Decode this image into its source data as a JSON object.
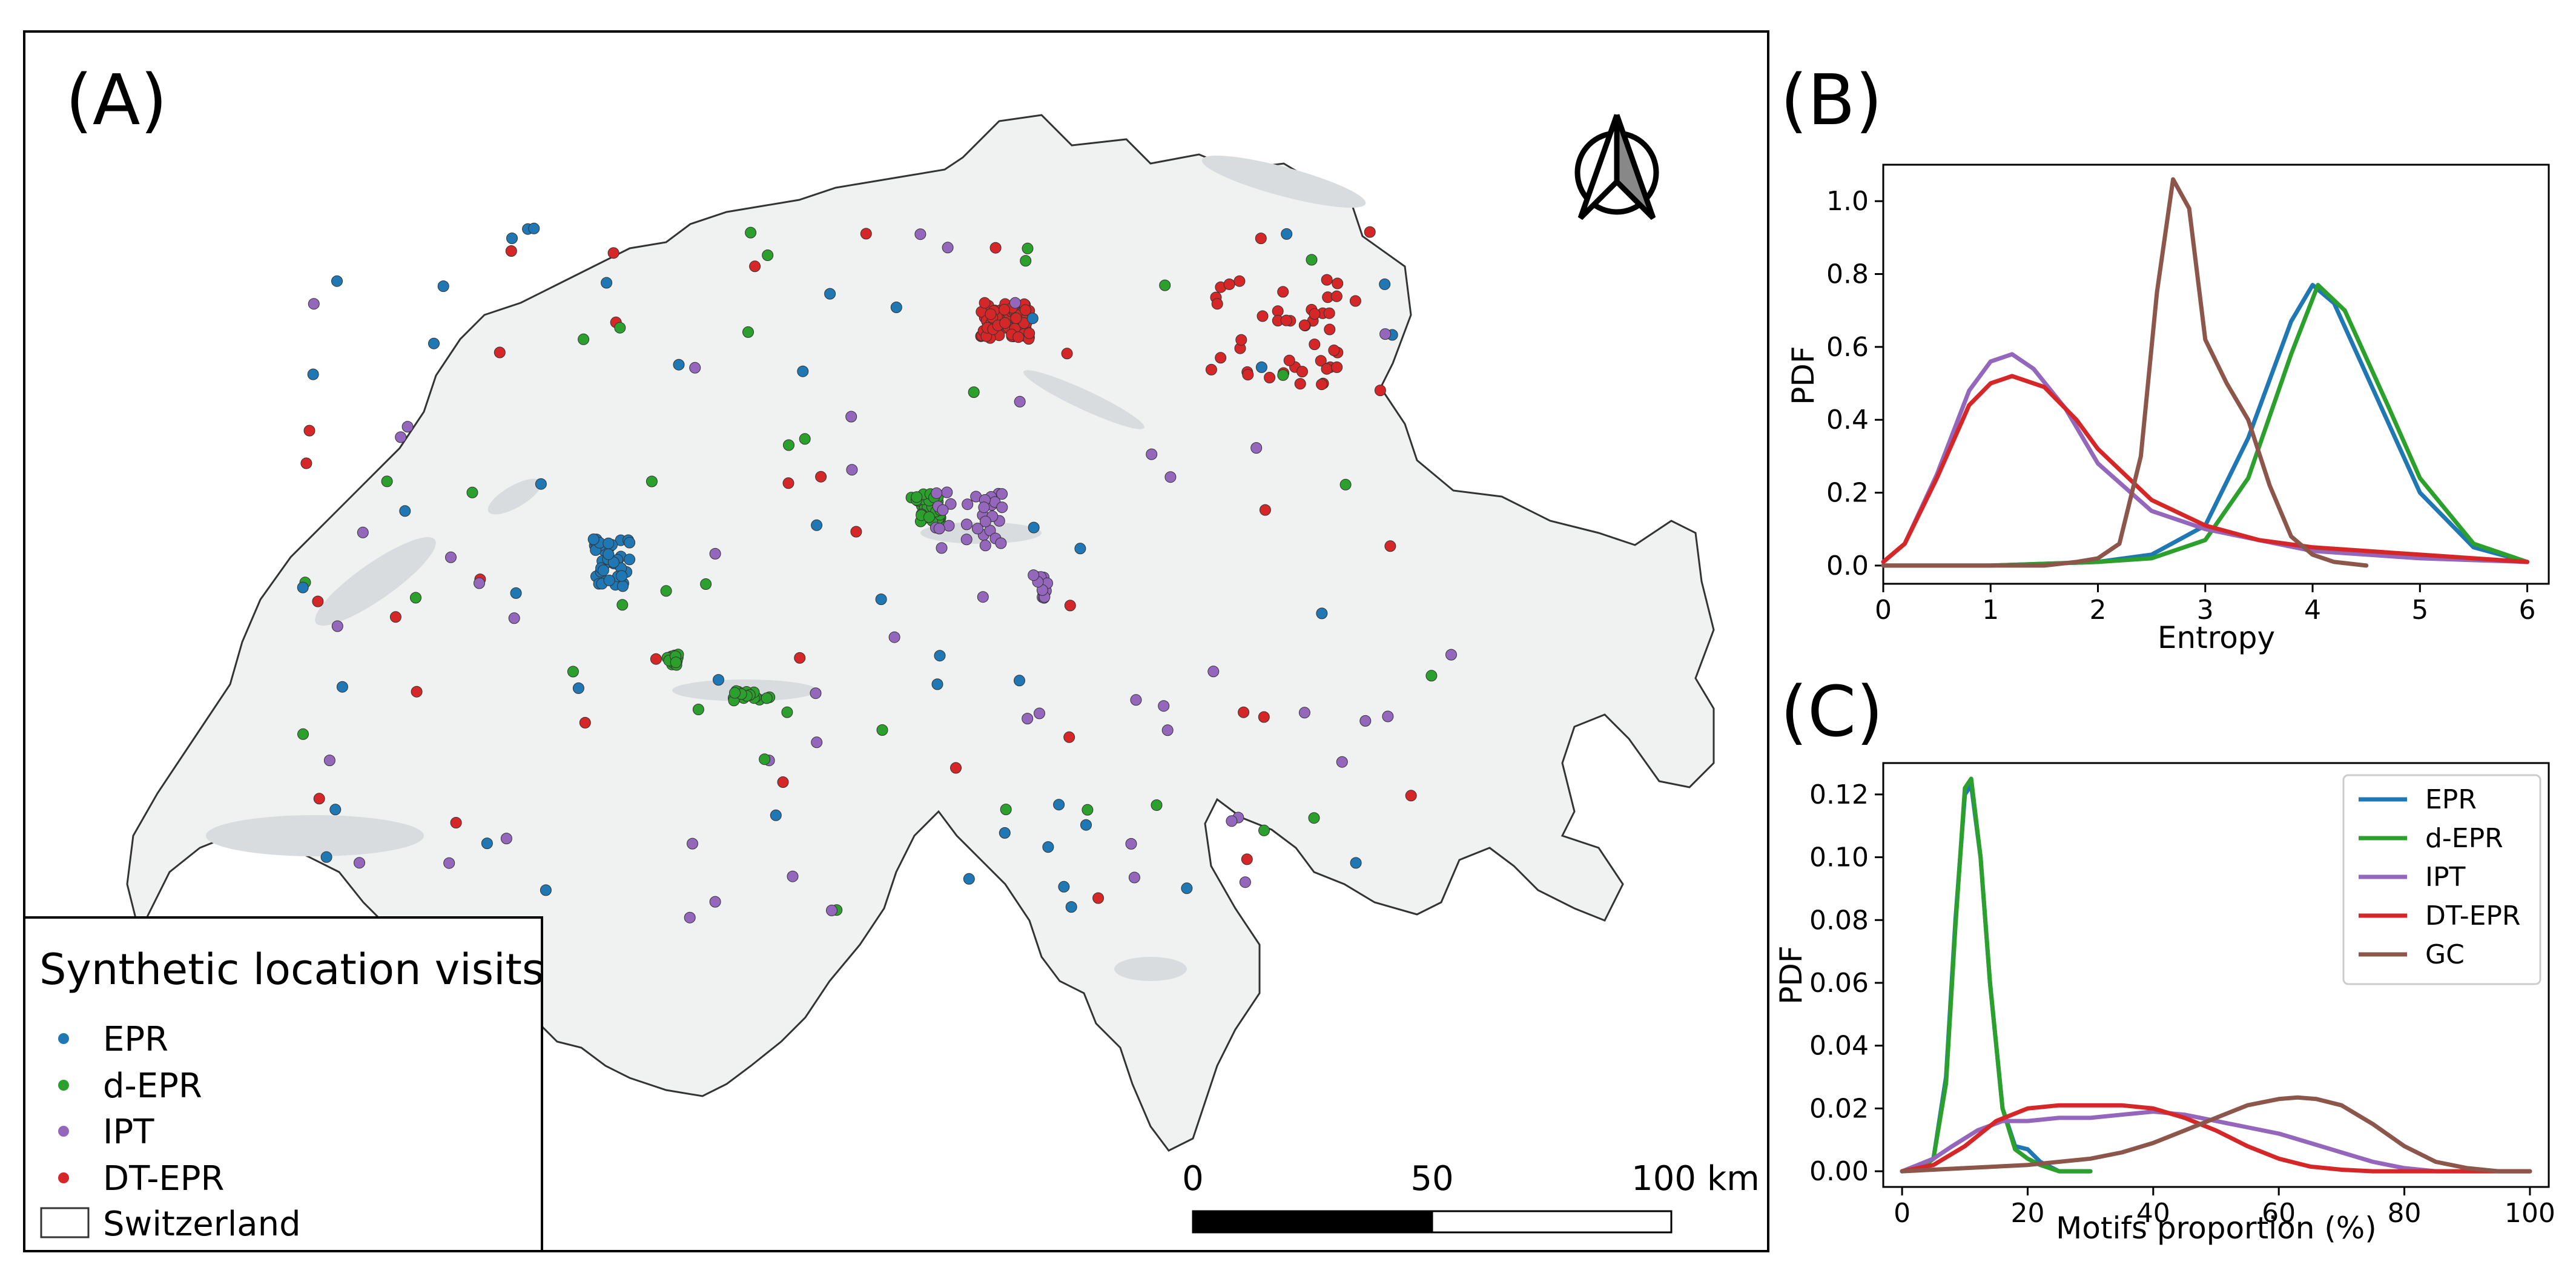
{
  "panels": {
    "a": "(A)",
    "b": "(B)",
    "c": "(C)"
  },
  "map": {
    "legend_title": "Synthetic location visits",
    "legend_items": [
      {
        "label": "EPR",
        "color": "#1f77b4"
      },
      {
        "label": "d-EPR",
        "color": "#2ca02c"
      },
      {
        "label": "IPT",
        "color": "#9467bd"
      },
      {
        "label": "DT-EPR",
        "color": "#d62728"
      }
    ],
    "boundary_label": "Switzerland",
    "scale_labels": [
      "0",
      "50",
      "100 km"
    ],
    "north_arrow_icon": "north-arrow-icon"
  },
  "chart_data": [
    {
      "type": "line",
      "panel": "(B)",
      "xlabel": "Entropy",
      "ylabel": "PDF",
      "xlim": [
        0,
        6.2
      ],
      "ylim": [
        -0.05,
        1.1
      ],
      "xticks": [
        0,
        1,
        2,
        3,
        4,
        5,
        6
      ],
      "yticks": [
        0.0,
        0.2,
        0.4,
        0.6,
        0.8,
        1.0
      ],
      "ytick_labels": [
        "0.0",
        "0.2",
        "0.4",
        "0.6",
        "0.8",
        "1.0"
      ],
      "grid": false,
      "series": [
        {
          "name": "EPR",
          "color": "#1f77b4",
          "x": [
            0,
            1,
            2,
            2.5,
            3,
            3.4,
            3.8,
            4.0,
            4.2,
            4.6,
            5.0,
            5.5,
            6.0
          ],
          "y": [
            0,
            0,
            0.01,
            0.03,
            0.11,
            0.35,
            0.67,
            0.77,
            0.72,
            0.46,
            0.2,
            0.05,
            0.01
          ]
        },
        {
          "name": "d-EPR",
          "color": "#2ca02c",
          "x": [
            0,
            1,
            2,
            2.5,
            3,
            3.4,
            3.8,
            4.05,
            4.3,
            4.7,
            5.0,
            5.5,
            6.0
          ],
          "y": [
            0,
            0,
            0.01,
            0.02,
            0.07,
            0.24,
            0.58,
            0.77,
            0.7,
            0.44,
            0.24,
            0.06,
            0.01
          ]
        },
        {
          "name": "IPT",
          "color": "#9467bd",
          "x": [
            0,
            0.2,
            0.5,
            0.8,
            1.0,
            1.2,
            1.4,
            1.7,
            2.0,
            2.5,
            3.0,
            3.5,
            4.0,
            5.0,
            6.0
          ],
          "y": [
            0.01,
            0.06,
            0.25,
            0.48,
            0.56,
            0.58,
            0.54,
            0.43,
            0.28,
            0.15,
            0.1,
            0.07,
            0.04,
            0.02,
            0.01
          ]
        },
        {
          "name": "DT-EPR",
          "color": "#d62728",
          "x": [
            0,
            0.2,
            0.5,
            0.8,
            1.0,
            1.2,
            1.5,
            1.8,
            2.0,
            2.5,
            3.0,
            3.5,
            4.0,
            5.0,
            6.0
          ],
          "y": [
            0.01,
            0.06,
            0.24,
            0.44,
            0.5,
            0.52,
            0.49,
            0.4,
            0.32,
            0.18,
            0.11,
            0.07,
            0.05,
            0.03,
            0.01
          ]
        },
        {
          "name": "GC",
          "color": "#8c564b",
          "x": [
            0,
            1.5,
            1.8,
            2.0,
            2.2,
            2.4,
            2.55,
            2.7,
            2.85,
            3.0,
            3.2,
            3.4,
            3.6,
            3.8,
            4.0,
            4.2,
            4.5
          ],
          "y": [
            0,
            0,
            0.01,
            0.02,
            0.06,
            0.3,
            0.75,
            1.06,
            0.98,
            0.62,
            0.5,
            0.4,
            0.22,
            0.08,
            0.03,
            0.01,
            0.0
          ]
        }
      ]
    },
    {
      "type": "line",
      "panel": "(C)",
      "xlabel": "Motifs proportion (%)",
      "ylabel": "PDF",
      "xlim": [
        -3,
        103
      ],
      "ylim": [
        -0.005,
        0.13
      ],
      "xticks": [
        0,
        20,
        40,
        60,
        80,
        100
      ],
      "yticks": [
        0.0,
        0.02,
        0.04,
        0.06,
        0.08,
        0.1,
        0.12
      ],
      "ytick_labels": [
        "0.00",
        "0.02",
        "0.04",
        "0.06",
        "0.08",
        "0.10",
        "0.12"
      ],
      "grid": false,
      "legend_position": "top-right",
      "series": [
        {
          "name": "EPR",
          "color": "#1f77b4",
          "x": [
            0,
            3,
            5,
            7,
            8.5,
            10,
            11,
            12.5,
            14,
            16,
            18,
            20,
            22,
            25,
            30
          ],
          "y": [
            0,
            0.001,
            0.004,
            0.03,
            0.08,
            0.12,
            0.123,
            0.1,
            0.06,
            0.02,
            0.008,
            0.007,
            0.003,
            0.0,
            0.0
          ]
        },
        {
          "name": "d-EPR",
          "color": "#2ca02c",
          "x": [
            0,
            3,
            5,
            7,
            8.5,
            10,
            11,
            12.5,
            14,
            16,
            18,
            20,
            22,
            25,
            30
          ],
          "y": [
            0,
            0.001,
            0.004,
            0.028,
            0.078,
            0.122,
            0.125,
            0.1,
            0.06,
            0.02,
            0.007,
            0.004,
            0.002,
            0.0,
            0.0
          ]
        },
        {
          "name": "IPT",
          "color": "#9467bd",
          "x": [
            0,
            5,
            8,
            12,
            16,
            20,
            25,
            30,
            35,
            40,
            45,
            50,
            55,
            60,
            65,
            70,
            75,
            80,
            85,
            90,
            95,
            100
          ],
          "y": [
            0,
            0.004,
            0.008,
            0.013,
            0.016,
            0.016,
            0.017,
            0.017,
            0.018,
            0.019,
            0.018,
            0.016,
            0.014,
            0.012,
            0.009,
            0.006,
            0.003,
            0.001,
            0.0,
            0.0,
            0.0,
            0.0
          ]
        },
        {
          "name": "DT-EPR",
          "color": "#d62728",
          "x": [
            0,
            5,
            10,
            15,
            20,
            25,
            30,
            35,
            40,
            45,
            50,
            55,
            60,
            65,
            70,
            75,
            80,
            85,
            90,
            95,
            100
          ],
          "y": [
            0,
            0.002,
            0.008,
            0.016,
            0.02,
            0.021,
            0.021,
            0.021,
            0.02,
            0.017,
            0.013,
            0.008,
            0.004,
            0.0015,
            0.0005,
            0.0,
            0.0,
            0.0,
            0.0,
            0.0,
            0.0
          ]
        },
        {
          "name": "GC",
          "color": "#8c564b",
          "x": [
            0,
            10,
            20,
            30,
            35,
            40,
            45,
            50,
            55,
            60,
            63,
            66,
            70,
            75,
            80,
            85,
            90,
            95,
            100
          ],
          "y": [
            0,
            0.001,
            0.002,
            0.004,
            0.006,
            0.009,
            0.013,
            0.017,
            0.021,
            0.023,
            0.0235,
            0.023,
            0.021,
            0.015,
            0.008,
            0.003,
            0.001,
            0.0,
            0.0
          ]
        }
      ]
    }
  ]
}
